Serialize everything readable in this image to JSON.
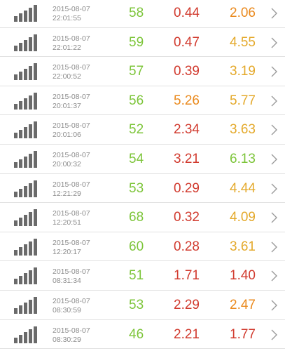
{
  "colors": {
    "ping": "#7dc53a",
    "red": "#d13a2e",
    "orange": "#ea8a1e",
    "amber": "#e4a92b",
    "gray_text": "#8c8c8c",
    "divider": "#e2e2e2"
  },
  "icons": {
    "signal": "signal-strength-icon",
    "chevron": "chevron-right-icon"
  },
  "rows": [
    {
      "date": "2015-08-07",
      "time": "22:01:55",
      "ping": "58",
      "download": "0.44",
      "upload": "2.06",
      "download_color": "#d13a2e",
      "upload_color": "#ea8a1e"
    },
    {
      "date": "2015-08-07",
      "time": "22:01:22",
      "ping": "59",
      "download": "0.47",
      "upload": "4.55",
      "download_color": "#d13a2e",
      "upload_color": "#e4a92b"
    },
    {
      "date": "2015-08-07",
      "time": "22:00:52",
      "ping": "57",
      "download": "0.39",
      "upload": "3.19",
      "download_color": "#d13a2e",
      "upload_color": "#e4a92b"
    },
    {
      "date": "2015-08-07",
      "time": "20:01:37",
      "ping": "56",
      "download": "5.26",
      "upload": "5.77",
      "download_color": "#ea8a1e",
      "upload_color": "#e4a92b"
    },
    {
      "date": "2015-08-07",
      "time": "20:01:06",
      "ping": "52",
      "download": "2.34",
      "upload": "3.63",
      "download_color": "#d13a2e",
      "upload_color": "#e4a92b"
    },
    {
      "date": "2015-08-07",
      "time": "20:00:32",
      "ping": "54",
      "download": "3.21",
      "upload": "6.13",
      "download_color": "#d13a2e",
      "upload_color": "#7dc53a"
    },
    {
      "date": "2015-08-07",
      "time": "12:21:29",
      "ping": "53",
      "download": "0.29",
      "upload": "4.44",
      "download_color": "#d13a2e",
      "upload_color": "#e4a92b"
    },
    {
      "date": "2015-08-07",
      "time": "12:20:51",
      "ping": "68",
      "download": "0.32",
      "upload": "4.09",
      "download_color": "#d13a2e",
      "upload_color": "#e4a92b"
    },
    {
      "date": "2015-08-07",
      "time": "12:20:17",
      "ping": "60",
      "download": "0.28",
      "upload": "3.61",
      "download_color": "#d13a2e",
      "upload_color": "#e4a92b"
    },
    {
      "date": "2015-08-07",
      "time": "08:31:34",
      "ping": "51",
      "download": "1.71",
      "upload": "1.40",
      "download_color": "#d13a2e",
      "upload_color": "#d13a2e"
    },
    {
      "date": "2015-08-07",
      "time": "08:30:59",
      "ping": "53",
      "download": "2.29",
      "upload": "2.47",
      "download_color": "#d13a2e",
      "upload_color": "#ea8a1e"
    },
    {
      "date": "2015-08-07",
      "time": "08:30:29",
      "ping": "46",
      "download": "2.21",
      "upload": "1.77",
      "download_color": "#d13a2e",
      "upload_color": "#d13a2e"
    }
  ]
}
